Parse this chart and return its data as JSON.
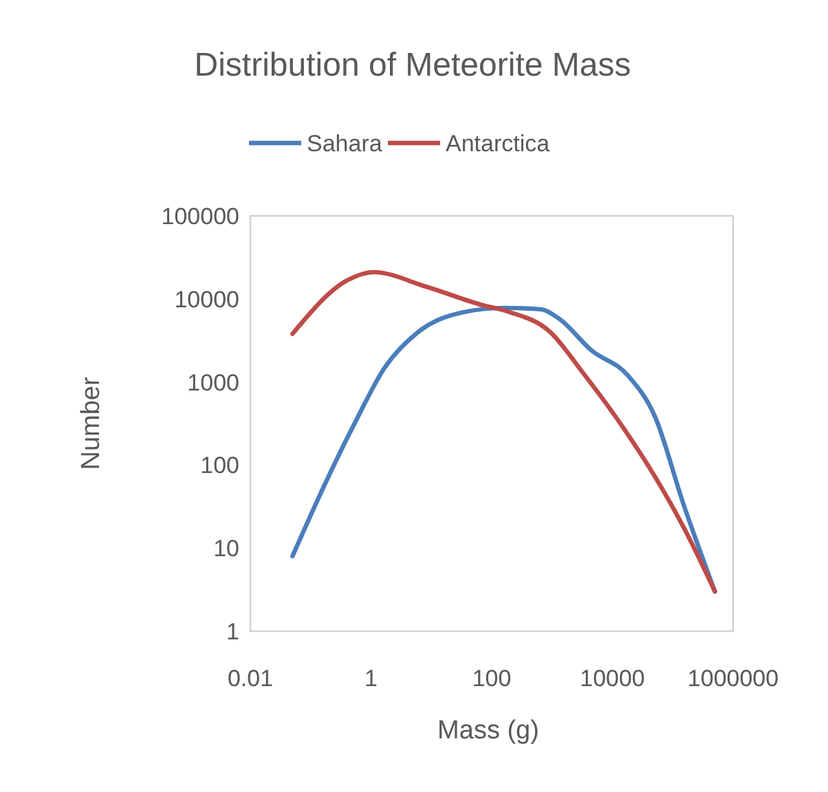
{
  "chart_data": {
    "type": "line",
    "title": "Distribution of Meteorite Mass",
    "xlabel": "Mass (g)",
    "ylabel": "Number",
    "log": "xy",
    "xlim": [
      0.01,
      1000000
    ],
    "xticks": [
      0.01,
      1,
      100,
      10000,
      1000000
    ],
    "ylim": [
      1,
      100000
    ],
    "yticks": [
      1,
      10,
      100,
      1000,
      10000,
      100000
    ],
    "grid": false,
    "legend": "top",
    "marker": "none",
    "line_style": "solid",
    "series": [
      {
        "name": "Sahara",
        "color": "#4a7ebb",
        "x": [
          0.05,
          0.18,
          0.55,
          1.7,
          5.8,
          33,
          160,
          650,
          1300,
          4500,
          18000,
          51000,
          150000,
          500000
        ],
        "values": [
          8,
          63,
          330,
          1500,
          3900,
          6900,
          7800,
          7500,
          5800,
          2400,
          1200,
          380,
          34,
          3
        ]
      },
      {
        "name": "Antarctica",
        "color": "#be4b48",
        "x": [
          0.05,
          0.42,
          1.1,
          8.3,
          67,
          190,
          930,
          3100,
          13000,
          51000,
          150000,
          500000
        ],
        "values": [
          3800,
          17000,
          21000,
          14000,
          8500,
          7000,
          4000,
          1350,
          330,
          72,
          18,
          3
        ]
      }
    ]
  }
}
